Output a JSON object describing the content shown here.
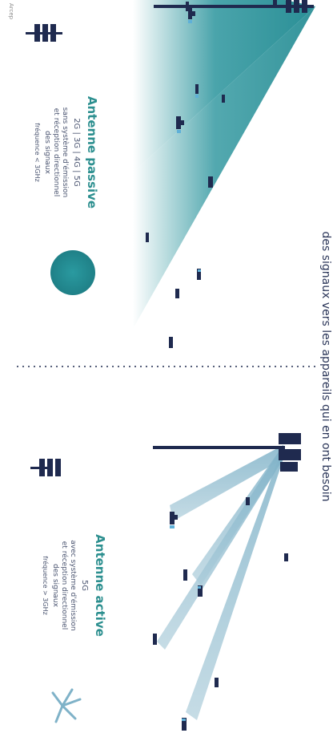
{
  "heading": "des signaux vers les appareils qui en ont besoin",
  "passive": {
    "title": "Antenne passive",
    "generations": "2G | 3G | 4G | 5G",
    "description_lines": [
      "sans système d'émission",
      "et réception directionnel",
      "des signaux"
    ],
    "frequency": "fréquence < 3GHz"
  },
  "active": {
    "title": "Antenne active",
    "generations": "5G",
    "description_lines": [
      "avec système d'émission",
      "et réception directionnel",
      "des signaux"
    ],
    "frequency": "fréquence > 3GHz"
  },
  "footer": "Arcep",
  "colors": {
    "teal": "#2a8f96",
    "beam": "#a9c9d7",
    "navy": "#1f2a4f",
    "title": "#2c8f8f"
  }
}
